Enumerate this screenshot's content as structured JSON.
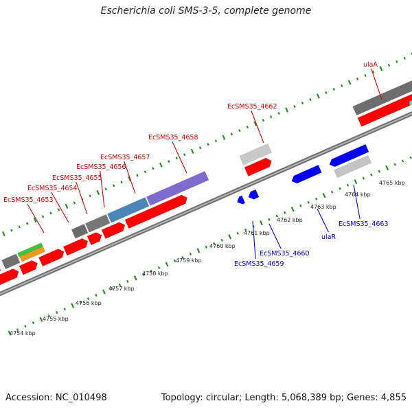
{
  "title": "Escherichia coli SMS-3-5, complete genome",
  "footer": {
    "accession": "Accession: NC_010498",
    "stats": "Topology: circular; Length: 5,068,389 bp; Genes: 4,855"
  },
  "colors": {
    "forward_label": "#cc0000",
    "reverse_label": "#0000cc",
    "forward_cds": "#ff0000",
    "reverse_cds": "#0000ee",
    "backbone": "#888888",
    "tick": "#2a8a2a"
  },
  "scale_labels": [
    "4754 kbp",
    "4755 kbp",
    "4756 kbp",
    "4757 kbp",
    "4758 kbp",
    "4759 kbp",
    "4760 kbp",
    "4761 kbp",
    "4762 kbp",
    "4763 kbp",
    "4764 kbp",
    "4765 kbp"
  ],
  "forward_genes": [
    "EcSMS35_4653",
    "EcSMS35_4654",
    "EcSMS35_4655",
    "EcSMS35_4656",
    "EcSMS35_4657",
    "EcSMS35_4658",
    "EcSMS35_4662",
    "ulaA"
  ],
  "reverse_genes": [
    "EcSMS35_4659",
    "EcSMS35_4660",
    "ulaR",
    "EcSMS35_4663"
  ]
}
